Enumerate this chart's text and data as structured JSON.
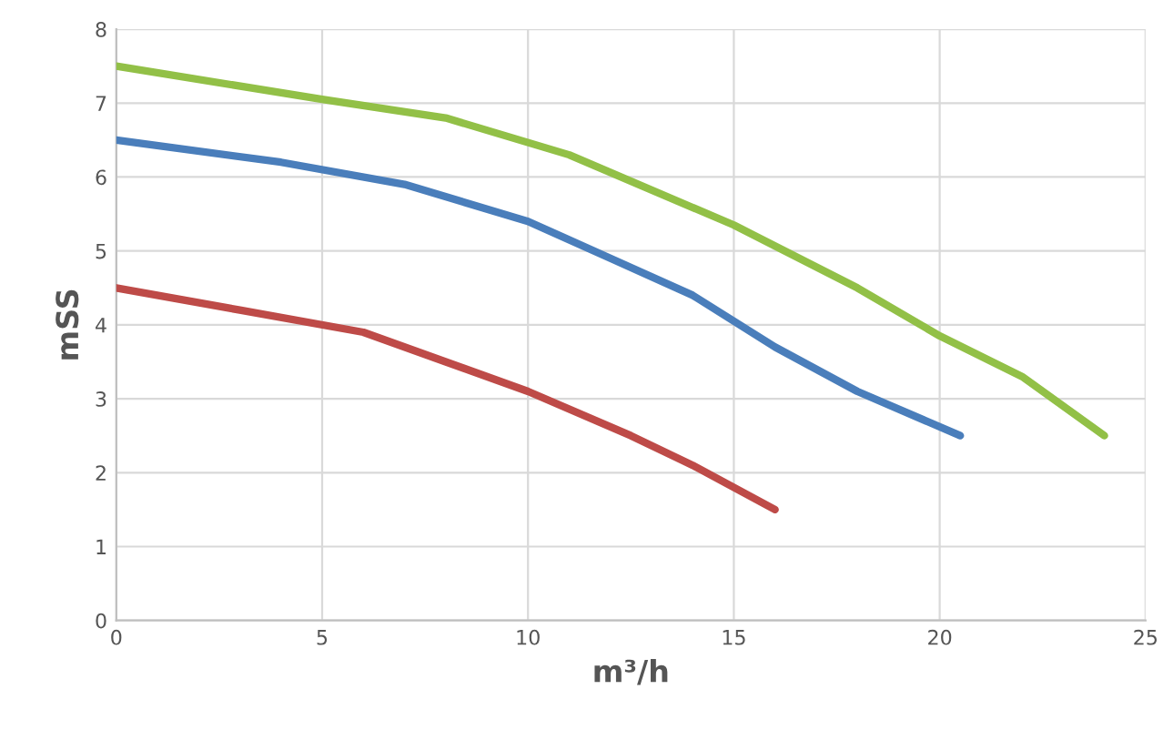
{
  "chart_data": {
    "type": "line",
    "xlabel": "m³/h",
    "ylabel": "mSS",
    "series": [
      {
        "color": "#92c047",
        "x": [
          0,
          5,
          8,
          11,
          15,
          18,
          20,
          22,
          24
        ],
        "values": [
          7.5,
          7.05,
          6.8,
          6.3,
          5.35,
          4.5,
          3.85,
          3.3,
          2.5
        ]
      },
      {
        "color": "#4a7ebb",
        "x": [
          0,
          4,
          7,
          10,
          12,
          14,
          16,
          18,
          20.5
        ],
        "values": [
          6.5,
          6.2,
          5.9,
          5.4,
          4.9,
          4.4,
          3.7,
          3.1,
          2.5
        ]
      },
      {
        "color": "#be4b48",
        "x": [
          0,
          3,
          6,
          8,
          10,
          12.5,
          14,
          16
        ],
        "values": [
          4.5,
          4.2,
          3.9,
          3.5,
          3.1,
          2.5,
          2.1,
          1.5
        ]
      }
    ],
    "xlim": [
      0,
      25
    ],
    "xticks": [
      0,
      5,
      10,
      15,
      20,
      25
    ],
    "ylim": [
      0,
      8
    ],
    "yticks": [
      0,
      1,
      2,
      3,
      4,
      5,
      6,
      7,
      8
    ],
    "grid": true
  }
}
